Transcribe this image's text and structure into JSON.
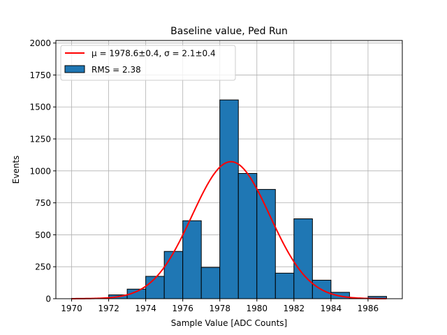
{
  "chart_data": {
    "type": "histogram",
    "title": "Baseline value, Ped Run",
    "xlabel": "Sample Value [ADC Counts]",
    "ylabel": "Events",
    "xlim": [
      1969.15,
      1987.85
    ],
    "ylim": [
      0,
      2020
    ],
    "grid": true,
    "legend_position": "upper-left",
    "bar_color": "#1f77b4",
    "fit_color": "#ff0000",
    "x_ticks": [
      1970,
      1972,
      1974,
      1976,
      1978,
      1980,
      1982,
      1984,
      1986
    ],
    "y_ticks": [
      0,
      250,
      500,
      750,
      1000,
      1250,
      1500,
      1750,
      2000
    ],
    "bins": [
      {
        "x0": 1970,
        "x1": 1971,
        "value": 3
      },
      {
        "x0": 1971,
        "x1": 1972,
        "value": 2
      },
      {
        "x0": 1972,
        "x1": 1973,
        "value": 30
      },
      {
        "x0": 1973,
        "x1": 1974,
        "value": 75
      },
      {
        "x0": 1974,
        "x1": 1975,
        "value": 175
      },
      {
        "x0": 1975,
        "x1": 1976,
        "value": 370
      },
      {
        "x0": 1976,
        "x1": 1977,
        "value": 610
      },
      {
        "x0": 1977,
        "x1": 1978,
        "value": 245
      },
      {
        "x0": 1978,
        "x1": 1979,
        "value": 1555
      },
      {
        "x0": 1979,
        "x1": 1980,
        "value": 980
      },
      {
        "x0": 1980,
        "x1": 1981,
        "value": 855
      },
      {
        "x0": 1981,
        "x1": 1982,
        "value": 200
      },
      {
        "x0": 1982,
        "x1": 1983,
        "value": 625
      },
      {
        "x0": 1983,
        "x1": 1984,
        "value": 145
      },
      {
        "x0": 1984,
        "x1": 1985,
        "value": 50
      },
      {
        "x0": 1985,
        "x1": 1986,
        "value": 2
      },
      {
        "x0": 1986,
        "x1": 1987,
        "value": 18
      }
    ],
    "fit": {
      "type": "gaussian",
      "mean": 1978.6,
      "sigma": 2.1,
      "amplitude": 1072,
      "x_range": [
        1970,
        1987
      ]
    },
    "legend": {
      "fit_label": "μ = 1978.6±0.4, σ = 2.1±0.4",
      "hist_label": "RMS = 2.38"
    }
  }
}
